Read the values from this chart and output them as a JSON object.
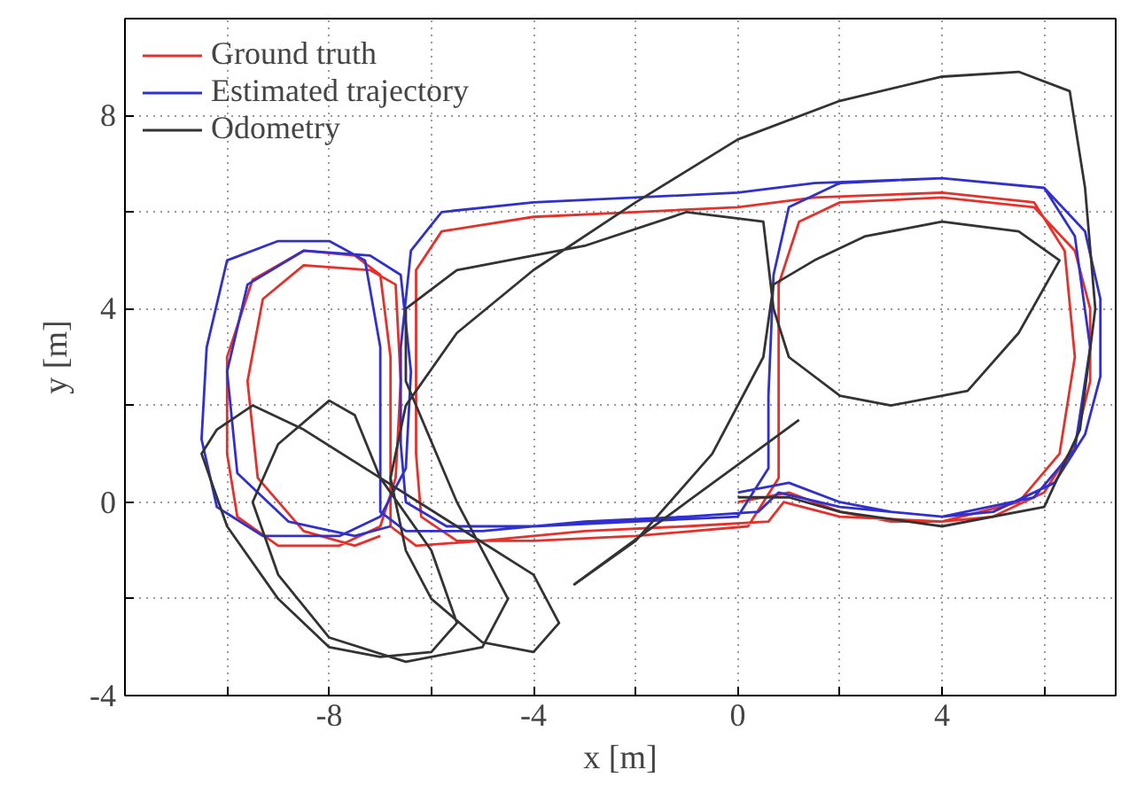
{
  "chart_data": {
    "type": "line",
    "xlabel": "x [m]",
    "ylabel": "y [m]",
    "xlim": [
      -12,
      7.4
    ],
    "ylim": [
      -4,
      10
    ],
    "xticks": [
      {
        "value": -10,
        "label": null
      },
      -8,
      {
        "value": -6,
        "label": null
      },
      -4,
      {
        "value": -2,
        "label": null
      },
      0,
      {
        "value": 2,
        "label": null
      },
      4,
      {
        "value": 6,
        "label": null
      }
    ],
    "yticks": [
      -4,
      {
        "value": -2,
        "label": null
      },
      0,
      {
        "value": 2,
        "label": null
      },
      4,
      {
        "value": 6,
        "label": null
      },
      8
    ],
    "grid": true,
    "legend": "top left",
    "marker": "none",
    "line_style": "solid",
    "series": [
      {
        "name": "Ground truth",
        "color": "#e8302a",
        "x": [
          0,
          1,
          2,
          3,
          4,
          5,
          6,
          6.6,
          6.9,
          6.9,
          6.6,
          5.8,
          4,
          2,
          1.2,
          0.8,
          0.8,
          0.8,
          0.2,
          -2,
          -4,
          -5.5,
          -6.2,
          -6.3,
          -6.3,
          -6.3,
          -5.8,
          -4,
          -2,
          0,
          1.5,
          4,
          5.8,
          6.4,
          6.6,
          6.3,
          5.5,
          4,
          2,
          0.9,
          0.6,
          -1,
          -3,
          -5,
          -6.3,
          -6.8,
          -6.8,
          -6.8,
          -7,
          -7.5,
          -8.5,
          -9.5,
          -10,
          -10,
          -9.8,
          -9,
          -7.8,
          -7,
          -6.7,
          -6.6,
          -6.7,
          -7.2,
          -8.5,
          -9.3,
          -9.6,
          -9.4,
          -8.5,
          -7.5,
          -7
        ],
        "values": [
          0,
          0.2,
          -0.2,
          -0.4,
          -0.4,
          -0.3,
          0.2,
          1.2,
          2.5,
          4,
          5.2,
          6.1,
          6.3,
          6.2,
          5.8,
          4.5,
          2,
          0.5,
          -0.5,
          -0.7,
          -0.8,
          -0.8,
          -0.3,
          1,
          3,
          4.8,
          5.6,
          5.9,
          6,
          6.1,
          6.3,
          6.4,
          6.2,
          5.2,
          3,
          1,
          0,
          -0.4,
          -0.3,
          0,
          -0.4,
          -0.5,
          -0.6,
          -0.8,
          -0.9,
          -0.5,
          1,
          3,
          4.7,
          5.1,
          5.2,
          4.6,
          3,
          1,
          -0.3,
          -0.9,
          -0.9,
          -0.5,
          0.5,
          2.5,
          4.5,
          4.8,
          4.9,
          4.2,
          2.5,
          0.5,
          -0.6,
          -0.9,
          -0.7
        ]
      },
      {
        "name": "Estimated trajectory",
        "color": "#3030d0",
        "x": [
          0,
          1,
          2,
          3,
          4,
          5,
          6.2,
          6.8,
          7.1,
          7.1,
          6.8,
          6,
          4,
          2,
          1,
          0.7,
          0.6,
          0.6,
          0,
          -2,
          -4,
          -5.7,
          -6.5,
          -6.6,
          -6.6,
          -6.4,
          -5.8,
          -4,
          -2,
          0,
          1.5,
          4,
          6,
          6.6,
          6.9,
          6.6,
          5.8,
          4,
          2,
          0.8,
          0.4,
          -1,
          -3,
          -5,
          -6.5,
          -7,
          -7,
          -7,
          -7.3,
          -8,
          -9,
          -10,
          -10.4,
          -10.5,
          -10.2,
          -9.3,
          -7.8,
          -7,
          -6.5,
          -6.4,
          -6.6,
          -7.2,
          -8.5,
          -9.6,
          -10,
          -9.8,
          -8.8,
          -7.5,
          -6.8
        ],
        "values": [
          0.2,
          0.4,
          0,
          -0.2,
          -0.3,
          -0.2,
          0.4,
          1.4,
          2.6,
          4.2,
          5.6,
          6.5,
          6.7,
          6.6,
          6.1,
          4.7,
          2.2,
          0.7,
          -0.3,
          -0.4,
          -0.5,
          -0.5,
          0,
          1.2,
          3.2,
          5.2,
          6,
          6.2,
          6.3,
          6.4,
          6.6,
          6.7,
          6.5,
          5.5,
          3.2,
          1.1,
          0.1,
          -0.3,
          -0.1,
          0.2,
          -0.2,
          -0.3,
          -0.4,
          -0.6,
          -0.6,
          -0.2,
          1.2,
          3.2,
          5,
          5.4,
          5.4,
          5,
          3.2,
          1.3,
          -0.1,
          -0.7,
          -0.7,
          -0.3,
          0.7,
          2.7,
          4.7,
          5.1,
          5.2,
          4.5,
          2.7,
          0.6,
          -0.4,
          -0.7,
          -0.5
        ]
      },
      {
        "name": "Odometry",
        "color": "#333333",
        "x": [
          0,
          1,
          2,
          4,
          6,
          6.7,
          7,
          6.8,
          6.5,
          5.5,
          4,
          2,
          0,
          -2,
          -4,
          -5.5,
          -6.5,
          -6.8,
          -6.5,
          -6,
          -5,
          -4,
          -3.5,
          -4,
          -5.5,
          -7,
          -8.5,
          -9.5,
          -10.2,
          -10.5,
          -10,
          -9,
          -8,
          -7,
          -6,
          -5.5,
          -6,
          -7,
          -7.5,
          -8,
          -9,
          -9.5,
          -9,
          -8,
          -6.5,
          -5,
          -4.5,
          -5.5,
          -6.5,
          -6.5,
          -5.5,
          -3,
          -1,
          0.5,
          0.7,
          1,
          2,
          3,
          4.5,
          5.5,
          6.3,
          5.5,
          4,
          2.5,
          1.5,
          0.7,
          0.5,
          -0.5,
          -2,
          -3.2,
          -1,
          1.2
        ],
        "values": [
          0.1,
          0.1,
          -0.2,
          -0.5,
          -0.1,
          1.5,
          4,
          6.5,
          8.5,
          8.9,
          8.8,
          8.3,
          7.5,
          6.2,
          4.8,
          3.5,
          2,
          0.5,
          -1,
          -2,
          -2.9,
          -3.1,
          -2.5,
          -1.5,
          -0.5,
          0.5,
          1.5,
          2,
          1.5,
          1,
          -0.5,
          -2,
          -3,
          -3.2,
          -3.1,
          -2.5,
          -1,
          0.5,
          1.8,
          2.1,
          1.2,
          0,
          -1.5,
          -2.8,
          -3.3,
          -3,
          -2,
          0,
          2.5,
          4,
          4.8,
          5.3,
          6,
          5.8,
          4,
          3,
          2.2,
          2,
          2.3,
          3.5,
          5,
          5.6,
          5.8,
          5.5,
          5,
          4.5,
          3,
          1,
          -0.8,
          -1.7,
          0,
          1.7
        ]
      }
    ]
  }
}
